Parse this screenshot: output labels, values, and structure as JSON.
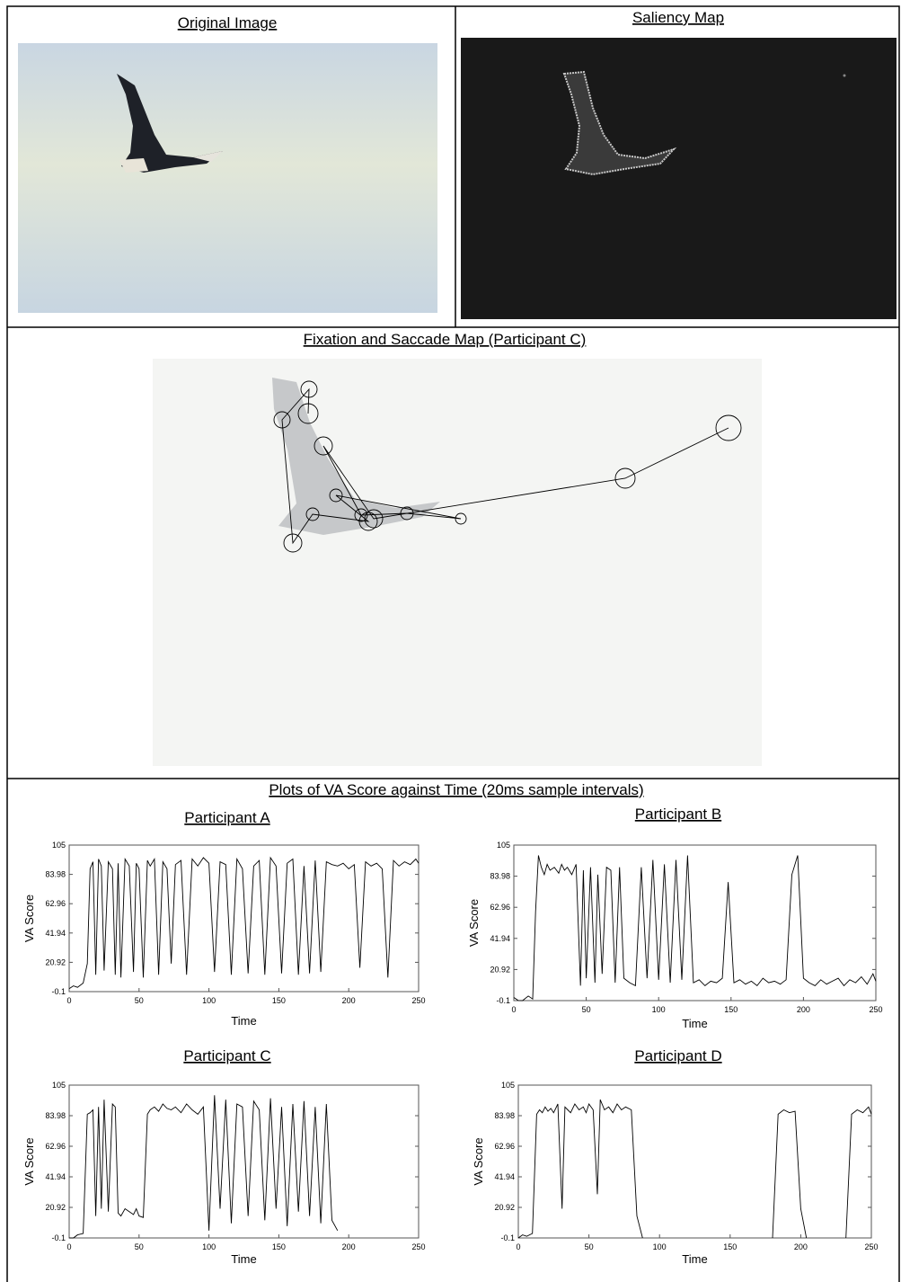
{
  "panels": {
    "original_title": "Original Image",
    "saliency_title": "Saliency Map",
    "fixation_title": "Fixation and Saccade Map (Participant C)",
    "plots_title": "Plots of VA Score against Time (20ms sample intervals)"
  },
  "chart_data": [
    {
      "type": "line",
      "title": "Participant A",
      "xlabel": "Time",
      "ylabel": "VA Score",
      "color": "#000000",
      "xlim": [
        0,
        250
      ],
      "ylim": [
        -0.1,
        105
      ],
      "xticks": [
        0,
        50,
        100,
        150,
        200,
        250
      ],
      "yticks": [
        -0.1,
        20.92,
        41.94,
        62.96,
        83.98,
        105
      ],
      "x": [
        0,
        3,
        6,
        10,
        13,
        15,
        17,
        19,
        21,
        23,
        25,
        28,
        31,
        33,
        35,
        37,
        40,
        43,
        46,
        48,
        50,
        53,
        56,
        58,
        61,
        64,
        67,
        70,
        73,
        76,
        80,
        84,
        88,
        92,
        96,
        100,
        104,
        108,
        112,
        116,
        120,
        124,
        128,
        132,
        136,
        140,
        144,
        148,
        152,
        156,
        160,
        164,
        168,
        172,
        176,
        180,
        184,
        188,
        192,
        196,
        200,
        204,
        208,
        212,
        216,
        220,
        224,
        228,
        232,
        236,
        240,
        244,
        248,
        250
      ],
      "values": [
        2,
        4,
        3,
        6,
        20,
        88,
        93,
        12,
        95,
        90,
        15,
        93,
        88,
        12,
        92,
        10,
        95,
        90,
        14,
        92,
        88,
        10,
        94,
        90,
        95,
        12,
        93,
        88,
        20,
        91,
        94,
        12,
        95,
        90,
        96,
        92,
        14,
        93,
        91,
        12,
        95,
        88,
        13,
        90,
        94,
        12,
        96,
        90,
        13,
        92,
        95,
        12,
        90,
        13,
        94,
        14,
        93,
        91,
        90,
        92,
        88,
        91,
        17,
        93,
        90,
        92,
        88,
        10,
        94,
        90,
        93,
        91,
        95,
        92
      ]
    },
    {
      "type": "line",
      "title": "Participant B",
      "xlabel": "Time",
      "ylabel": "VA Score",
      "color": "#000000",
      "xlim": [
        0,
        250
      ],
      "ylim": [
        -0.1,
        105
      ],
      "xticks": [
        0,
        50,
        100,
        150,
        200,
        250
      ],
      "yticks": [
        -0.1,
        20.92,
        41.94,
        62.96,
        83.98,
        105
      ],
      "x": [
        0,
        3,
        6,
        10,
        13,
        15,
        17,
        19,
        21,
        23,
        25,
        28,
        31,
        33,
        35,
        37,
        40,
        43,
        46,
        48,
        50,
        53,
        56,
        58,
        61,
        64,
        67,
        70,
        73,
        76,
        80,
        84,
        88,
        92,
        96,
        100,
        104,
        108,
        112,
        116,
        120,
        124,
        128,
        132,
        136,
        140,
        144,
        148,
        152,
        156,
        160,
        164,
        168,
        172,
        176,
        180,
        184,
        188,
        192,
        196,
        200,
        204,
        208,
        212,
        216,
        220,
        224,
        228,
        232,
        236,
        240,
        244,
        248,
        250
      ],
      "values": [
        2,
        0,
        -0.1,
        3,
        1,
        60,
        98,
        90,
        85,
        92,
        88,
        90,
        86,
        92,
        88,
        90,
        85,
        92,
        10,
        88,
        15,
        90,
        12,
        85,
        18,
        90,
        88,
        12,
        90,
        15,
        12,
        10,
        90,
        15,
        95,
        14,
        92,
        12,
        95,
        14,
        98,
        12,
        14,
        10,
        13,
        12,
        15,
        80,
        12,
        14,
        11,
        13,
        10,
        15,
        12,
        13,
        11,
        14,
        85,
        98,
        15,
        12,
        10,
        14,
        11,
        13,
        15,
        10,
        14,
        12,
        16,
        11,
        18,
        13
      ]
    },
    {
      "type": "line",
      "title": "Participant C",
      "xlabel": "Time",
      "ylabel": "VA Score",
      "color": "#000000",
      "xlim": [
        0,
        250
      ],
      "ylim": [
        -0.1,
        105
      ],
      "xticks": [
        0,
        50,
        100,
        150,
        200,
        250
      ],
      "yticks": [
        -0.1,
        20.92,
        41.94,
        62.96,
        83.98,
        105
      ],
      "x": [
        0,
        3,
        6,
        10,
        13,
        15,
        17,
        19,
        21,
        23,
        25,
        28,
        31,
        33,
        35,
        37,
        40,
        43,
        46,
        48,
        50,
        53,
        56,
        58,
        61,
        64,
        67,
        70,
        73,
        76,
        80,
        84,
        88,
        92,
        96,
        100,
        104,
        108,
        112,
        116,
        120,
        124,
        128,
        132,
        136,
        140,
        144,
        148,
        152,
        156,
        160,
        164,
        168,
        172,
        176,
        180,
        184,
        188,
        192,
        196,
        200,
        204,
        208,
        212,
        216,
        220,
        224,
        228,
        232,
        236,
        240,
        244,
        248,
        250
      ],
      "values": [
        -0.1,
        -0.1,
        2,
        3,
        85,
        86,
        88,
        15,
        90,
        20,
        95,
        18,
        92,
        90,
        17,
        15,
        20,
        18,
        16,
        20,
        15,
        14,
        85,
        88,
        90,
        87,
        92,
        89,
        88,
        90,
        86,
        92,
        88,
        85,
        90,
        5,
        98,
        20,
        95,
        10,
        92,
        90,
        15,
        94,
        88,
        12,
        96,
        20,
        90,
        8,
        92,
        18,
        94,
        15,
        90,
        10,
        92,
        12,
        5,
        null,
        null,
        null,
        null,
        null,
        null,
        null,
        null,
        null,
        null,
        null,
        null,
        null,
        null,
        null
      ]
    },
    {
      "type": "line",
      "title": "Participant D",
      "xlabel": "Time",
      "ylabel": "VA Score",
      "color": "#000000",
      "xlim": [
        0,
        250
      ],
      "ylim": [
        -0.1,
        105
      ],
      "xticks": [
        0,
        50,
        100,
        150,
        200,
        250
      ],
      "yticks": [
        -0.1,
        20.92,
        41.94,
        62.96,
        83.98,
        105
      ],
      "x": [
        0,
        3,
        6,
        10,
        13,
        15,
        17,
        19,
        21,
        23,
        25,
        28,
        31,
        33,
        35,
        37,
        40,
        43,
        46,
        48,
        50,
        53,
        56,
        58,
        61,
        64,
        67,
        70,
        73,
        76,
        80,
        84,
        88,
        92,
        96,
        100,
        104,
        108,
        112,
        116,
        120,
        124,
        128,
        132,
        136,
        140,
        144,
        148,
        152,
        156,
        160,
        164,
        168,
        172,
        176,
        180,
        184,
        188,
        192,
        196,
        200,
        204,
        208,
        212,
        216,
        220,
        224,
        228,
        232,
        236,
        240,
        244,
        248,
        250
      ],
      "values": [
        -0.1,
        2,
        1,
        3,
        85,
        88,
        86,
        90,
        87,
        89,
        86,
        92,
        20,
        90,
        88,
        86,
        92,
        88,
        90,
        86,
        92,
        88,
        30,
        95,
        88,
        90,
        86,
        92,
        88,
        90,
        88,
        15,
        -0.1,
        null,
        null,
        null,
        null,
        null,
        null,
        null,
        null,
        null,
        null,
        null,
        null,
        null,
        null,
        null,
        null,
        null,
        null,
        null,
        null,
        null,
        null,
        -0.1,
        85,
        88,
        86,
        87,
        20,
        -0.1,
        null,
        null,
        null,
        null,
        null,
        null,
        -0.1,
        85,
        88,
        86,
        90,
        85
      ]
    }
  ]
}
